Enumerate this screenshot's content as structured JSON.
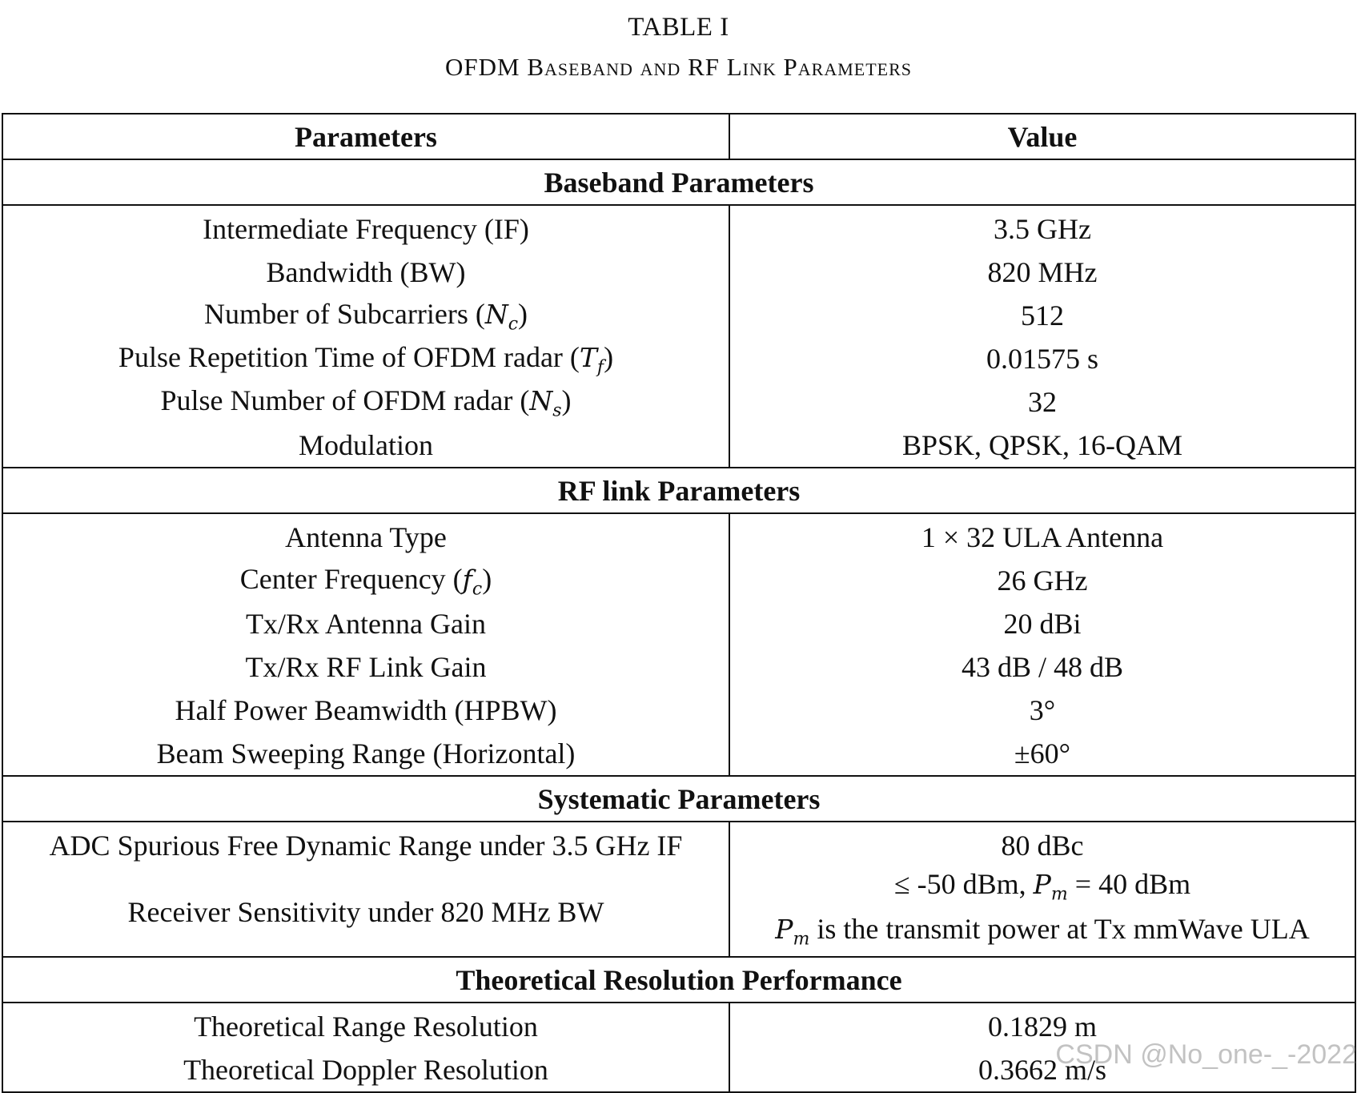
{
  "caption": {
    "number": "TABLE I",
    "title": "OFDM Baseband and RF Link Parameters"
  },
  "table": {
    "headers": [
      "Parameters",
      "Value"
    ],
    "sections": [
      {
        "title": "Baseband Parameters",
        "rows": [
          [
            "Intermediate Frequency (IF)",
            "3.5 GHz"
          ],
          [
            "Bandwidth (BW)",
            "820 MHz"
          ],
          [
            "Number of Subcarriers (Nc)",
            "512"
          ],
          [
            "Pulse Repetition Time of OFDM radar (Tf)",
            "0.01575 s"
          ],
          [
            "Pulse Number of OFDM radar (Ns)",
            "32"
          ],
          [
            "Modulation",
            "BPSK, QPSK, 16-QAM"
          ]
        ]
      },
      {
        "title": "RF link Parameters",
        "rows": [
          [
            "Antenna Type",
            "1 × 32 ULA Antenna"
          ],
          [
            "Center Frequency (fc)",
            "26 GHz"
          ],
          [
            "Tx/Rx Antenna Gain",
            "20 dBi"
          ],
          [
            "Tx/Rx RF Link Gain",
            "43 dB / 48 dB"
          ],
          [
            "Half Power Beamwidth (HPBW)",
            "3°"
          ],
          [
            "Beam Sweeping Range (Horizontal)",
            "±60°"
          ]
        ]
      },
      {
        "title": "Systematic Parameters",
        "rows": [
          [
            "ADC Spurious Free Dynamic Range under 3.5 GHz IF",
            "80 dBc"
          ],
          [
            "Receiver Sensitivity under 820 MHz BW",
            "≤ -50 dBm, Pm = 40 dBm",
            "Pm is the transmit power at Tx mmWave ULA"
          ]
        ]
      },
      {
        "title": "Theoretical Resolution Performance",
        "rows": [
          [
            "Theoretical Range Resolution",
            "0.1829 m"
          ],
          [
            "Theoretical Doppler Resolution",
            "0.3662 m/s"
          ]
        ]
      }
    ]
  },
  "watermark": "CSDN @No_one-_-2022"
}
